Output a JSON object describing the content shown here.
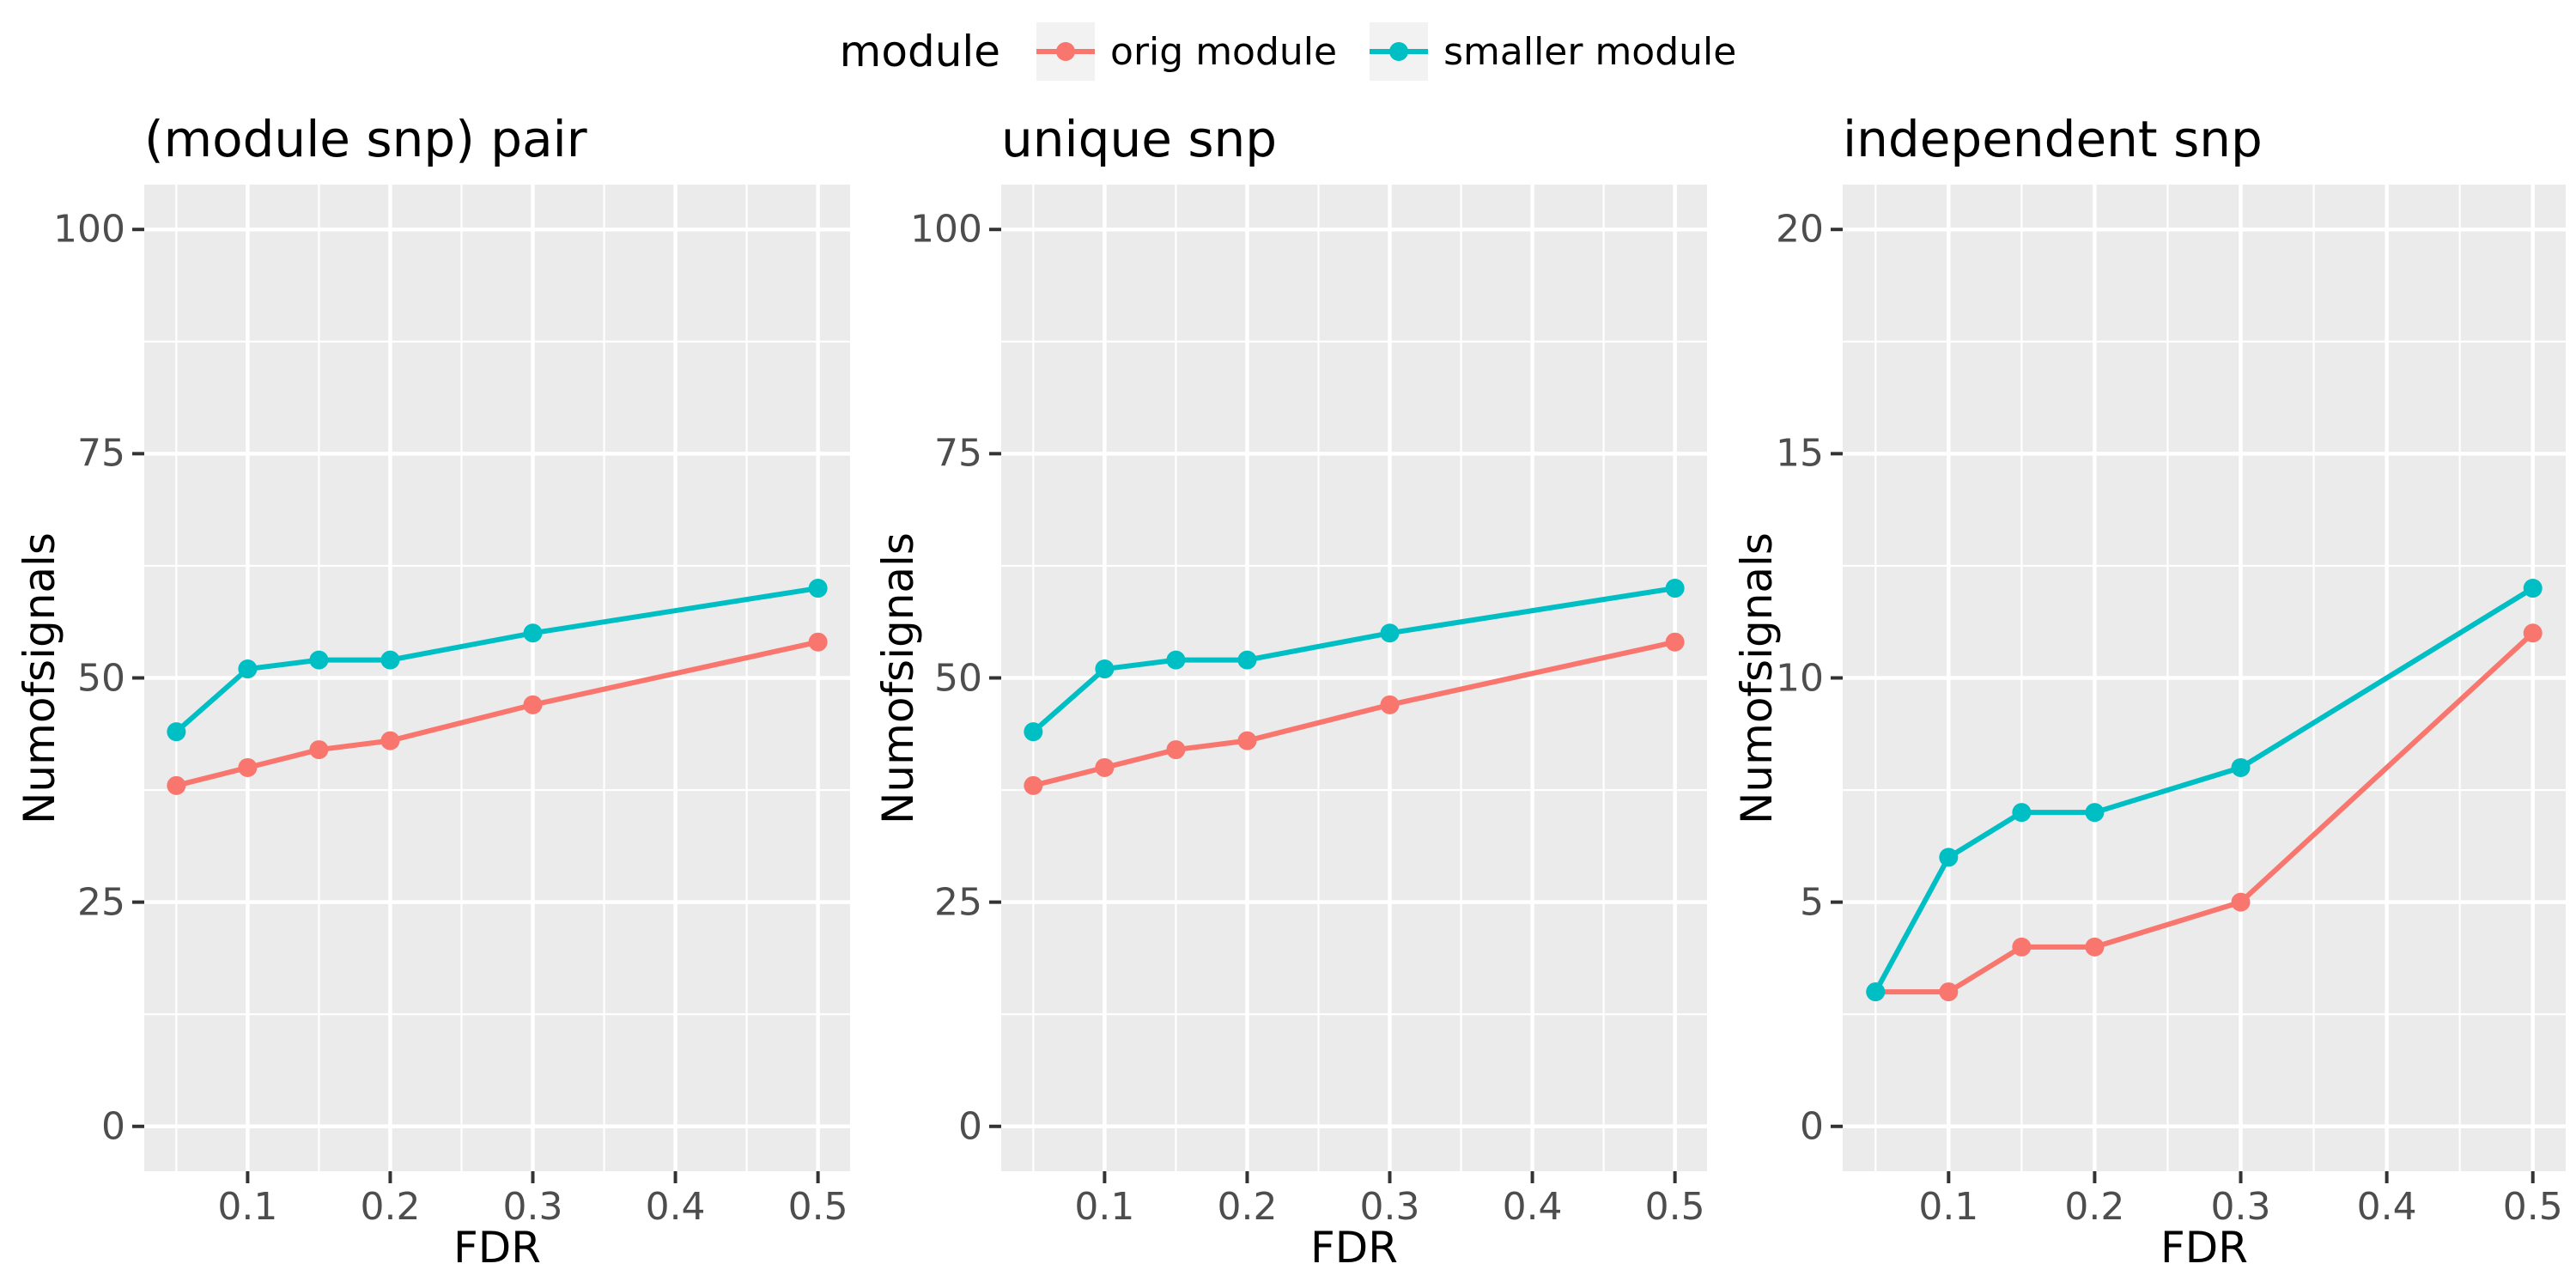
{
  "figure": {
    "background": "#FFFFFF",
    "legend": {
      "title": "module",
      "position": "top-center",
      "key_background": "#F2F2F2",
      "items": [
        {
          "label": "orig module",
          "color": "#F8766D"
        },
        {
          "label": "smaller module",
          "color": "#00BFC4"
        }
      ]
    }
  },
  "styles": {
    "panel_background": "#EBEBEB",
    "grid_color": "#FFFFFF",
    "tick_label_color": "#4D4D4D",
    "tick_mark_color": "#333333",
    "axis_title_color": "#000000"
  },
  "chart_data": [
    {
      "type": "line",
      "title": "(module snp) pair",
      "xlabel": "FDR",
      "ylabel": "Numofsignals",
      "x": [
        0.05,
        0.1,
        0.15,
        0.2,
        0.3,
        0.5
      ],
      "series": [
        {
          "name": "orig module",
          "color": "#F8766D",
          "values": [
            38,
            40,
            42,
            43,
            47,
            54
          ]
        },
        {
          "name": "smaller module",
          "color": "#00BFC4",
          "values": [
            44,
            51,
            52,
            52,
            55,
            60
          ]
        }
      ],
      "xlim": [
        0.0275,
        0.5225
      ],
      "ylim": [
        -5,
        105
      ],
      "xticks": {
        "values": [
          0.1,
          0.2,
          0.3,
          0.4,
          0.5
        ],
        "labels": [
          "0.1",
          "0.2",
          "0.3",
          "0.4",
          "0.5"
        ]
      },
      "yticks": {
        "values": [
          0,
          25,
          50,
          75,
          100
        ],
        "labels": [
          "0",
          "25",
          "50",
          "75",
          "100"
        ]
      },
      "x_minor": [
        0.05,
        0.15,
        0.25,
        0.35,
        0.45
      ],
      "y_minor": [
        12.5,
        37.5,
        62.5,
        87.5
      ],
      "grid": true,
      "legend_position": "top"
    },
    {
      "type": "line",
      "title": "unique snp",
      "xlabel": "FDR",
      "ylabel": "Numofsignals",
      "x": [
        0.05,
        0.1,
        0.15,
        0.2,
        0.3,
        0.5
      ],
      "series": [
        {
          "name": "orig module",
          "color": "#F8766D",
          "values": [
            38,
            40,
            42,
            43,
            47,
            54
          ]
        },
        {
          "name": "smaller module",
          "color": "#00BFC4",
          "values": [
            44,
            51,
            52,
            52,
            55,
            60
          ]
        }
      ],
      "xlim": [
        0.0275,
        0.5225
      ],
      "ylim": [
        -5,
        105
      ],
      "xticks": {
        "values": [
          0.1,
          0.2,
          0.3,
          0.4,
          0.5
        ],
        "labels": [
          "0.1",
          "0.2",
          "0.3",
          "0.4",
          "0.5"
        ]
      },
      "yticks": {
        "values": [
          0,
          25,
          50,
          75,
          100
        ],
        "labels": [
          "0",
          "25",
          "50",
          "75",
          "100"
        ]
      },
      "x_minor": [
        0.05,
        0.15,
        0.25,
        0.35,
        0.45
      ],
      "y_minor": [
        12.5,
        37.5,
        62.5,
        87.5
      ],
      "grid": true,
      "legend_position": "top"
    },
    {
      "type": "line",
      "title": "independent snp",
      "xlabel": "FDR",
      "ylabel": "Numofsignals",
      "x": [
        0.05,
        0.1,
        0.15,
        0.2,
        0.3,
        0.5
      ],
      "series": [
        {
          "name": "orig module",
          "color": "#F8766D",
          "values": [
            3,
            3,
            4,
            4,
            5,
            11
          ]
        },
        {
          "name": "smaller module",
          "color": "#00BFC4",
          "values": [
            3,
            6,
            7,
            7,
            8,
            12
          ]
        }
      ],
      "xlim": [
        0.0275,
        0.5225
      ],
      "ylim": [
        -1,
        21
      ],
      "xticks": {
        "values": [
          0.1,
          0.2,
          0.3,
          0.4,
          0.5
        ],
        "labels": [
          "0.1",
          "0.2",
          "0.3",
          "0.4",
          "0.5"
        ]
      },
      "yticks": {
        "values": [
          0,
          5,
          10,
          15,
          20
        ],
        "labels": [
          "0",
          "5",
          "10",
          "15",
          "20"
        ]
      },
      "x_minor": [
        0.05,
        0.15,
        0.25,
        0.35,
        0.45
      ],
      "y_minor": [
        2.5,
        7.5,
        12.5,
        17.5
      ],
      "grid": true,
      "legend_position": "top"
    }
  ]
}
